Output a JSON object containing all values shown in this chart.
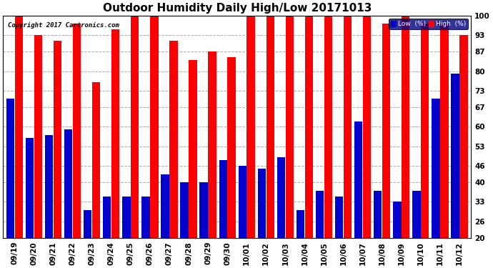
{
  "title": "Outdoor Humidity Daily High/Low 20171013",
  "copyright": "Copyright 2017 Cartronics.com",
  "dates": [
    "09/19",
    "09/20",
    "09/21",
    "09/22",
    "09/23",
    "09/24",
    "09/25",
    "09/26",
    "09/27",
    "09/28",
    "09/29",
    "09/30",
    "10/01",
    "10/02",
    "10/03",
    "10/04",
    "10/05",
    "10/06",
    "10/07",
    "10/08",
    "10/09",
    "10/10",
    "10/11",
    "10/12"
  ],
  "high": [
    100,
    93,
    91,
    97,
    76,
    95,
    100,
    100,
    91,
    84,
    87,
    85,
    100,
    100,
    100,
    100,
    100,
    100,
    100,
    97,
    100,
    97,
    97,
    93
  ],
  "low": [
    70,
    56,
    57,
    59,
    30,
    35,
    35,
    35,
    43,
    40,
    40,
    48,
    46,
    45,
    49,
    30,
    37,
    35,
    62,
    37,
    33,
    37,
    70,
    79
  ],
  "high_color": "#ff0000",
  "low_color": "#0000cc",
  "bg_color": "#ffffff",
  "grid_color": "#aaaaaa",
  "ylim_min": 20,
  "ylim_max": 100,
  "yticks": [
    20,
    26,
    33,
    40,
    46,
    53,
    60,
    67,
    73,
    80,
    87,
    93,
    100
  ],
  "title_fontsize": 11,
  "axis_fontsize": 7.5,
  "legend_labels": [
    "Low  (%)",
    "High  (%)"
  ],
  "legend_bg": "#000080",
  "bar_bottom": 20
}
